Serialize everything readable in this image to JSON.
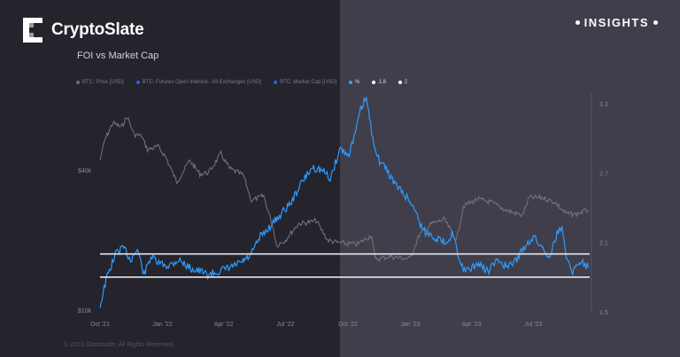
{
  "brand": {
    "name": "CryptoSlate",
    "tag": "INSIGHTS"
  },
  "chart_data": {
    "type": "line",
    "title": "FOI vs Market Cap",
    "legend": [
      {
        "label": "BTC: Price [USD]",
        "color": "#6e6c78"
      },
      {
        "label": "BTC: Futures Open Interest - All Exchanges [USD]",
        "color": "#2962ff"
      },
      {
        "label": "BTC: Market Cap [USD]",
        "color": "#2962ff"
      },
      {
        "label": "%",
        "color": "#2ea8ff"
      },
      {
        "label": "1.8",
        "color": "#ffffff"
      },
      {
        "label": "2",
        "color": "#ffffff"
      }
    ],
    "x_ticks": [
      "Oct '21",
      "Jan '22",
      "Apr '22",
      "Jul '22",
      "Oct '22",
      "Jan '23",
      "Apr '23",
      "Jul '23"
    ],
    "y_left_ticks": [
      "$40k",
      "$10k"
    ],
    "y_right_ticks": [
      "3.3",
      "2.7",
      "2.1",
      "1.5"
    ],
    "y_right_range": [
      1.5,
      3.3
    ],
    "reference_lines": [
      1.8,
      2
    ],
    "series": [
      {
        "name": "BTC: Price [USD]",
        "color": "#77757f",
        "points": [
          [
            "2021-10-01",
            44000
          ],
          [
            "2021-10-08",
            54000
          ],
          [
            "2021-10-20",
            64000
          ],
          [
            "2021-11-01",
            61000
          ],
          [
            "2021-11-10",
            68000
          ],
          [
            "2021-11-20",
            57000
          ],
          [
            "2021-12-01",
            56000
          ],
          [
            "2021-12-10",
            49000
          ],
          [
            "2021-12-25",
            50500
          ],
          [
            "2022-01-05",
            46000
          ],
          [
            "2022-01-22",
            35500
          ],
          [
            "2022-02-10",
            44000
          ],
          [
            "2022-02-25",
            38500
          ],
          [
            "2022-03-10",
            39000
          ],
          [
            "2022-03-28",
            47000
          ],
          [
            "2022-04-10",
            40500
          ],
          [
            "2022-04-30",
            38000
          ],
          [
            "2022-05-12",
            29500
          ],
          [
            "2022-05-30",
            31000
          ],
          [
            "2022-06-13",
            22500
          ],
          [
            "2022-06-18",
            19000
          ],
          [
            "2022-07-01",
            20000
          ],
          [
            "2022-07-20",
            23500
          ],
          [
            "2022-08-10",
            24000
          ],
          [
            "2022-08-15",
            24300
          ],
          [
            "2022-09-01",
            20000
          ],
          [
            "2022-09-15",
            19500
          ],
          [
            "2022-10-01",
            19300
          ],
          [
            "2022-10-15",
            19200
          ],
          [
            "2022-11-05",
            21000
          ],
          [
            "2022-11-10",
            16500
          ],
          [
            "2022-12-01",
            17000
          ],
          [
            "2022-12-31",
            16600
          ],
          [
            "2023-01-14",
            21000
          ],
          [
            "2023-02-01",
            23500
          ],
          [
            "2023-02-20",
            24500
          ],
          [
            "2023-03-10",
            20000
          ],
          [
            "2023-03-20",
            28000
          ],
          [
            "2023-04-10",
            30000
          ],
          [
            "2023-04-30",
            29000
          ],
          [
            "2023-05-20",
            27000
          ],
          [
            "2023-06-15",
            25500
          ],
          [
            "2023-06-25",
            30500
          ],
          [
            "2023-07-15",
            30400
          ],
          [
            "2023-08-01",
            29200
          ],
          [
            "2023-08-18",
            26000
          ],
          [
            "2023-09-01",
            25800
          ],
          [
            "2023-09-20",
            27000
          ]
        ]
      },
      {
        "name": "%",
        "color": "#2f9cff",
        "points": [
          [
            "2021-10-01",
            1.55
          ],
          [
            "2021-10-10",
            1.78
          ],
          [
            "2021-10-25",
            2.02
          ],
          [
            "2021-11-05",
            2.05
          ],
          [
            "2021-11-15",
            1.95
          ],
          [
            "2021-11-25",
            2.04
          ],
          [
            "2021-12-05",
            1.82
          ],
          [
            "2021-12-15",
            1.98
          ],
          [
            "2021-12-25",
            1.92
          ],
          [
            "2022-01-10",
            1.9
          ],
          [
            "2022-01-25",
            1.95
          ],
          [
            "2022-02-10",
            1.88
          ],
          [
            "2022-02-25",
            1.85
          ],
          [
            "2022-03-10",
            1.82
          ],
          [
            "2022-03-25",
            1.85
          ],
          [
            "2022-04-10",
            1.88
          ],
          [
            "2022-04-25",
            1.92
          ],
          [
            "2022-05-10",
            1.98
          ],
          [
            "2022-05-25",
            2.15
          ],
          [
            "2022-06-10",
            2.25
          ],
          [
            "2022-06-25",
            2.35
          ],
          [
            "2022-07-10",
            2.45
          ],
          [
            "2022-07-25",
            2.62
          ],
          [
            "2022-08-10",
            2.75
          ],
          [
            "2022-08-25",
            2.72
          ],
          [
            "2022-09-05",
            2.65
          ],
          [
            "2022-09-20",
            2.92
          ],
          [
            "2022-10-01",
            2.85
          ],
          [
            "2022-10-10",
            3.0
          ],
          [
            "2022-10-20",
            3.25
          ],
          [
            "2022-10-28",
            3.35
          ],
          [
            "2022-11-05",
            3.05
          ],
          [
            "2022-11-15",
            2.82
          ],
          [
            "2022-11-25",
            2.75
          ],
          [
            "2022-12-10",
            2.6
          ],
          [
            "2022-12-25",
            2.5
          ],
          [
            "2023-01-05",
            2.42
          ],
          [
            "2023-01-20",
            2.2
          ],
          [
            "2023-02-05",
            2.15
          ],
          [
            "2023-02-20",
            2.1
          ],
          [
            "2023-03-05",
            2.18
          ],
          [
            "2023-03-15",
            1.9
          ],
          [
            "2023-03-28",
            1.85
          ],
          [
            "2023-04-10",
            1.92
          ],
          [
            "2023-04-25",
            1.85
          ],
          [
            "2023-05-10",
            1.95
          ],
          [
            "2023-05-25",
            1.88
          ],
          [
            "2023-06-10",
            1.98
          ],
          [
            "2023-06-20",
            2.08
          ],
          [
            "2023-07-01",
            2.15
          ],
          [
            "2023-07-15",
            2.05
          ],
          [
            "2023-07-25",
            1.98
          ],
          [
            "2023-08-05",
            2.18
          ],
          [
            "2023-08-12",
            2.22
          ],
          [
            "2023-08-20",
            1.95
          ],
          [
            "2023-08-28",
            1.85
          ],
          [
            "2023-09-10",
            1.95
          ],
          [
            "2023-09-20",
            1.88
          ]
        ]
      }
    ]
  },
  "footer": "© 2023 Glassnode. All Rights Reserved."
}
